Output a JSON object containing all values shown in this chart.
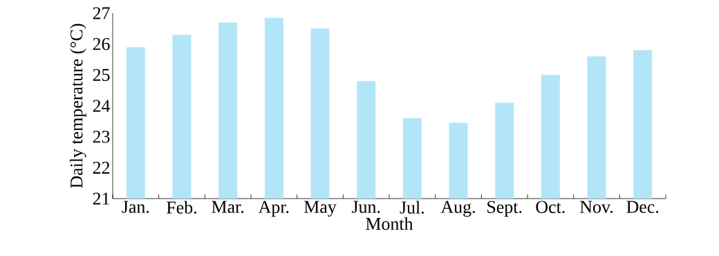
{
  "chart_data": {
    "type": "bar",
    "xlabel": "Month",
    "ylabel": "Daily temperature (°C)",
    "categories": [
      "Jan.",
      "Feb.",
      "Mar.",
      "Apr.",
      "May",
      "Jun.",
      "Jul.",
      "Aug.",
      "Sept.",
      "Oct.",
      "Nov.",
      "Dec."
    ],
    "values": [
      25.9,
      26.3,
      26.7,
      26.85,
      26.5,
      24.8,
      23.6,
      23.45,
      24.1,
      25.0,
      25.6,
      25.8
    ],
    "color": "#b3e5f8",
    "ylim": [
      21,
      27
    ],
    "yticks": [
      21,
      22,
      23,
      24,
      25,
      26,
      27
    ],
    "grid": false
  }
}
